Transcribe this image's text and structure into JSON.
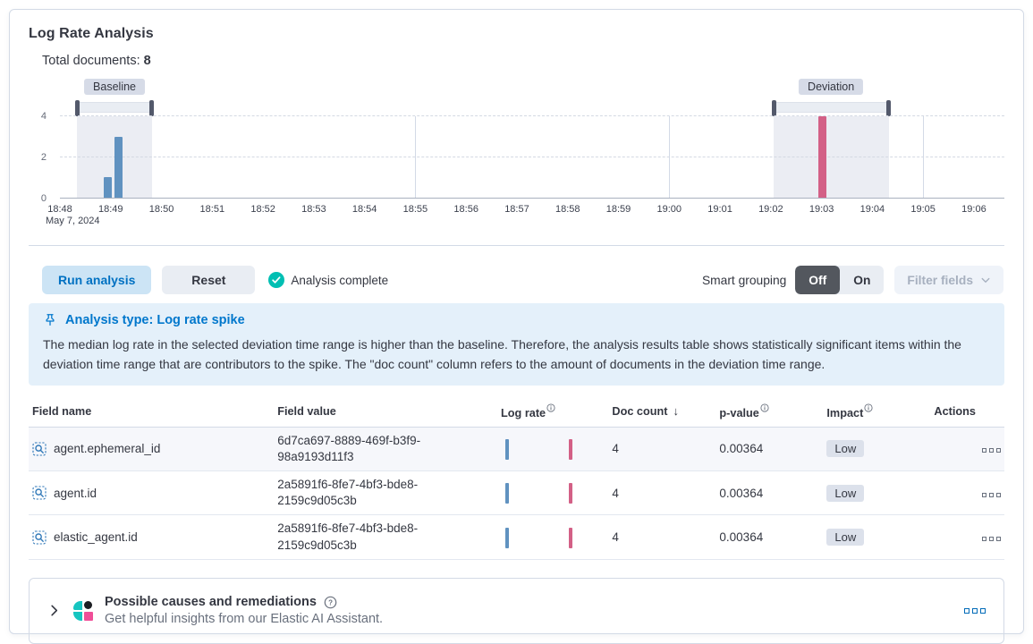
{
  "page": {
    "title": "Log Rate Analysis",
    "total_documents_label": "Total documents:",
    "total_documents_value": "8"
  },
  "chart_data": {
    "type": "bar",
    "title": "Log rate histogram with baseline and deviation time range brushes",
    "domain_minutes": 18.6,
    "ylim": [
      0,
      4
    ],
    "y_ticks": [
      0,
      2,
      4
    ],
    "major_gridlines_minutes": [
      7,
      12,
      17
    ],
    "time_axis": {
      "tick_interval_minutes": 1,
      "date_label": "May 7, 2024",
      "ticks": [
        "18:48",
        "18:49",
        "18:50",
        "18:51",
        "18:52",
        "18:53",
        "18:54",
        "18:55",
        "18:56",
        "18:57",
        "18:58",
        "18:59",
        "19:00",
        "19:01",
        "19:02",
        "19:03",
        "19:04",
        "19:05",
        "19:06"
      ]
    },
    "bar_width_minutes": 0.16,
    "bars": [
      {
        "time": "18:48:50",
        "t": 0.95,
        "count": 1,
        "series": "baseline"
      },
      {
        "time": "18:49:05",
        "t": 1.16,
        "count": 3,
        "series": "baseline"
      },
      {
        "time": "19:03:05",
        "t": 15.02,
        "count": 4,
        "series": "deviation"
      }
    ],
    "windows": {
      "baseline": {
        "label": "Baseline",
        "from_minutes": 0.33,
        "to_minutes": 1.82
      },
      "deviation": {
        "label": "Deviation",
        "from_minutes": 14.05,
        "to_minutes": 16.32
      }
    },
    "series_colors": {
      "baseline": "#6092C0",
      "deviation": "#D36086"
    }
  },
  "toolbar": {
    "run_button": "Run analysis",
    "reset_button": "Reset",
    "status_text": "Analysis complete",
    "status_color": "#00BFB3",
    "smart_grouping_label": "Smart grouping",
    "toggle_off": "Off",
    "toggle_on": "On",
    "toggle_selected": "Off",
    "filter_fields_button": "Filter fields"
  },
  "callout": {
    "title": "Analysis type: Log rate spike",
    "accent_color": "#0077CC",
    "body": "The median log rate in the selected deviation time range is higher than the baseline. Therefore, the analysis results table shows statistically significant items within the deviation time range that are contributors to the spike. The \"doc count\" column refers to the amount of documents in the deviation time range."
  },
  "table": {
    "columns": [
      "Field name",
      "Field value",
      "Log rate",
      "Doc count",
      "p-value",
      "Impact",
      "Actions"
    ],
    "sorted_column": "Doc count",
    "sort_direction": "desc",
    "sparkline": {
      "baseline_pos": 0.06,
      "deviation_pos": 0.9
    },
    "rows": [
      {
        "field_name": "agent.ephemeral_id",
        "field_value": "6d7ca697-8889-469f-b3f9-98a9193d11f3",
        "doc_count": "4",
        "p_value": "0.00364",
        "impact": "Low"
      },
      {
        "field_name": "agent.id",
        "field_value": "2a5891f6-8fe7-4bf3-bde8-2159c9d05c3b",
        "doc_count": "4",
        "p_value": "0.00364",
        "impact": "Low"
      },
      {
        "field_name": "elastic_agent.id",
        "field_value": "2a5891f6-8fe7-4bf3-bde8-2159c9d05c3b",
        "doc_count": "4",
        "p_value": "0.00364",
        "impact": "Low"
      }
    ]
  },
  "insights_panel": {
    "title": "Possible causes and remediations",
    "subtitle": "Get helpful insights from our Elastic AI Assistant."
  }
}
